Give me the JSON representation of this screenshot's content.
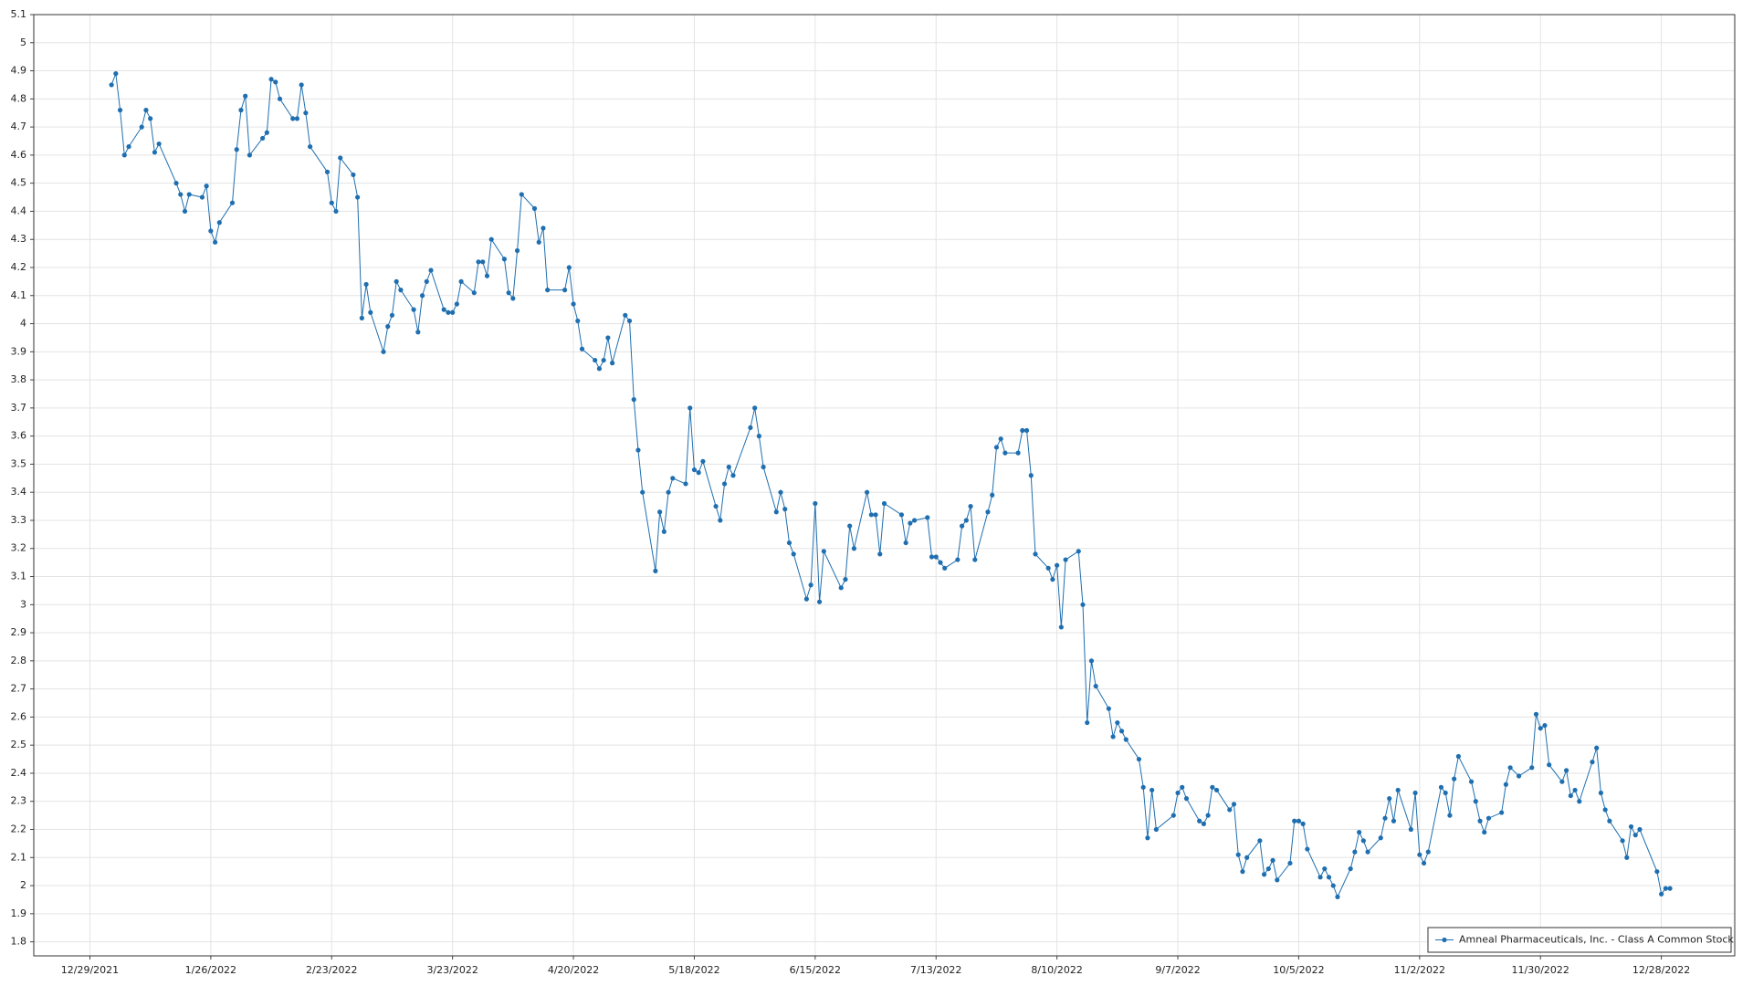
{
  "chart_data": {
    "type": "line",
    "x": [
      "1/3/2022",
      "1/4/2022",
      "1/5/2022",
      "1/6/2022",
      "1/7/2022",
      "1/10/2022",
      "1/11/2022",
      "1/12/2022",
      "1/13/2022",
      "1/14/2022",
      "1/18/2022",
      "1/19/2022",
      "1/20/2022",
      "1/21/2022",
      "1/24/2022",
      "1/25/2022",
      "1/26/2022",
      "1/27/2022",
      "1/28/2022",
      "1/31/2022",
      "2/1/2022",
      "2/2/2022",
      "2/3/2022",
      "2/4/2022",
      "2/7/2022",
      "2/8/2022",
      "2/9/2022",
      "2/10/2022",
      "2/11/2022",
      "2/14/2022",
      "2/15/2022",
      "2/16/2022",
      "2/17/2022",
      "2/18/2022",
      "2/22/2022",
      "2/23/2022",
      "2/24/2022",
      "2/25/2022",
      "2/28/2022",
      "3/1/2022",
      "3/2/2022",
      "3/3/2022",
      "3/4/2022",
      "3/7/2022",
      "3/8/2022",
      "3/9/2022",
      "3/10/2022",
      "3/11/2022",
      "3/14/2022",
      "3/15/2022",
      "3/16/2022",
      "3/17/2022",
      "3/18/2022",
      "3/21/2022",
      "3/22/2022",
      "3/23/2022",
      "3/24/2022",
      "3/25/2022",
      "3/28/2022",
      "3/29/2022",
      "3/30/2022",
      "3/31/2022",
      "4/1/2022",
      "4/4/2022",
      "4/5/2022",
      "4/6/2022",
      "4/7/2022",
      "4/8/2022",
      "4/11/2022",
      "4/12/2022",
      "4/13/2022",
      "4/14/2022",
      "4/18/2022",
      "4/19/2022",
      "4/20/2022",
      "4/21/2022",
      "4/22/2022",
      "4/25/2022",
      "4/26/2022",
      "4/27/2022",
      "4/28/2022",
      "4/29/2022",
      "5/2/2022",
      "5/3/2022",
      "5/4/2022",
      "5/5/2022",
      "5/6/2022",
      "5/9/2022",
      "5/10/2022",
      "5/11/2022",
      "5/12/2022",
      "5/13/2022",
      "5/16/2022",
      "5/17/2022",
      "5/18/2022",
      "5/19/2022",
      "5/20/2022",
      "5/23/2022",
      "5/24/2022",
      "5/25/2022",
      "5/26/2022",
      "5/27/2022",
      "5/31/2022",
      "6/1/2022",
      "6/2/2022",
      "6/3/2022",
      "6/6/2022",
      "6/7/2022",
      "6/8/2022",
      "6/9/2022",
      "6/10/2022",
      "6/13/2022",
      "6/14/2022",
      "6/15/2022",
      "6/16/2022",
      "6/17/2022",
      "6/21/2022",
      "6/22/2022",
      "6/23/2022",
      "6/24/2022",
      "6/27/2022",
      "6/28/2022",
      "6/29/2022",
      "6/30/2022",
      "7/1/2022",
      "7/5/2022",
      "7/6/2022",
      "7/7/2022",
      "7/8/2022",
      "7/11/2022",
      "7/12/2022",
      "7/13/2022",
      "7/14/2022",
      "7/15/2022",
      "7/18/2022",
      "7/19/2022",
      "7/20/2022",
      "7/21/2022",
      "7/22/2022",
      "7/25/2022",
      "7/26/2022",
      "7/27/2022",
      "7/28/2022",
      "7/29/2022",
      "8/1/2022",
      "8/2/2022",
      "8/3/2022",
      "8/4/2022",
      "8/5/2022",
      "8/8/2022",
      "8/9/2022",
      "8/10/2022",
      "8/11/2022",
      "8/12/2022",
      "8/15/2022",
      "8/16/2022",
      "8/17/2022",
      "8/18/2022",
      "8/19/2022",
      "8/22/2022",
      "8/23/2022",
      "8/24/2022",
      "8/25/2022",
      "8/26/2022",
      "8/29/2022",
      "8/30/2022",
      "8/31/2022",
      "9/1/2022",
      "9/2/2022",
      "9/6/2022",
      "9/7/2022",
      "9/8/2022",
      "9/9/2022",
      "9/12/2022",
      "9/13/2022",
      "9/14/2022",
      "9/15/2022",
      "9/16/2022",
      "9/19/2022",
      "9/20/2022",
      "9/21/2022",
      "9/22/2022",
      "9/23/2022",
      "9/26/2022",
      "9/27/2022",
      "9/28/2022",
      "9/29/2022",
      "9/30/2022",
      "10/3/2022",
      "10/4/2022",
      "10/5/2022",
      "10/6/2022",
      "10/7/2022",
      "10/10/2022",
      "10/11/2022",
      "10/12/2022",
      "10/13/2022",
      "10/14/2022",
      "10/17/2022",
      "10/18/2022",
      "10/19/2022",
      "10/20/2022",
      "10/21/2022",
      "10/24/2022",
      "10/25/2022",
      "10/26/2022",
      "10/27/2022",
      "10/28/2022",
      "10/31/2022",
      "11/1/2022",
      "11/2/2022",
      "11/3/2022",
      "11/4/2022",
      "11/7/2022",
      "11/8/2022",
      "11/9/2022",
      "11/10/2022",
      "11/11/2022",
      "11/14/2022",
      "11/15/2022",
      "11/16/2022",
      "11/17/2022",
      "11/18/2022",
      "11/21/2022",
      "11/22/2022",
      "11/23/2022",
      "11/25/2022",
      "11/28/2022",
      "11/29/2022",
      "11/30/2022",
      "12/1/2022",
      "12/2/2022",
      "12/5/2022",
      "12/6/2022",
      "12/7/2022",
      "12/8/2022",
      "12/9/2022",
      "12/12/2022",
      "12/13/2022",
      "12/14/2022",
      "12/15/2022",
      "12/16/2022",
      "12/19/2022",
      "12/20/2022",
      "12/21/2022",
      "12/22/2022",
      "12/23/2022",
      "12/27/2022",
      "12/28/2022",
      "12/29/2022",
      "12/30/2022"
    ],
    "series": [
      {
        "name": "Amneal Pharmaceuticals, Inc. - Class A Common Stock",
        "color": "#1f6fb0",
        "values": [
          4.85,
          4.89,
          4.76,
          4.6,
          4.63,
          4.7,
          4.76,
          4.73,
          4.61,
          4.64,
          4.5,
          4.46,
          4.4,
          4.46,
          4.45,
          4.49,
          4.33,
          4.29,
          4.36,
          4.43,
          4.62,
          4.76,
          4.81,
          4.6,
          4.66,
          4.68,
          4.87,
          4.86,
          4.8,
          4.73,
          4.73,
          4.85,
          4.75,
          4.63,
          4.54,
          4.43,
          4.4,
          4.59,
          4.53,
          4.45,
          4.02,
          4.14,
          4.04,
          3.9,
          3.99,
          4.03,
          4.15,
          4.12,
          4.05,
          3.97,
          4.1,
          4.15,
          4.19,
          4.05,
          4.04,
          4.04,
          4.07,
          4.15,
          4.11,
          4.22,
          4.22,
          4.17,
          4.3,
          4.23,
          4.11,
          4.09,
          4.26,
          4.46,
          4.41,
          4.29,
          4.34,
          4.12,
          4.12,
          4.2,
          4.07,
          4.01,
          3.91,
          3.87,
          3.84,
          3.87,
          3.95,
          3.86,
          4.03,
          4.01,
          3.73,
          3.55,
          3.4,
          3.12,
          3.33,
          3.26,
          3.4,
          3.45,
          3.43,
          3.7,
          3.48,
          3.47,
          3.51,
          3.35,
          3.3,
          3.43,
          3.49,
          3.46,
          3.63,
          3.7,
          3.6,
          3.49,
          3.33,
          3.4,
          3.34,
          3.22,
          3.18,
          3.02,
          3.07,
          3.36,
          3.01,
          3.19,
          3.06,
          3.09,
          3.28,
          3.2,
          3.4,
          3.32,
          3.32,
          3.18,
          3.36,
          3.32,
          3.22,
          3.29,
          3.3,
          3.31,
          3.17,
          3.17,
          3.15,
          3.13,
          3.16,
          3.28,
          3.3,
          3.35,
          3.16,
          3.33,
          3.39,
          3.56,
          3.59,
          3.54,
          3.54,
          3.62,
          3.62,
          3.46,
          3.18,
          3.13,
          3.09,
          3.14,
          2.92,
          3.16,
          3.19,
          3.0,
          2.58,
          2.8,
          2.71,
          2.63,
          2.53,
          2.58,
          2.55,
          2.52,
          2.45,
          2.35,
          2.17,
          2.34,
          2.2,
          2.25,
          2.33,
          2.35,
          2.31,
          2.23,
          2.22,
          2.25,
          2.35,
          2.34,
          2.27,
          2.29,
          2.11,
          2.05,
          2.1,
          2.16,
          2.04,
          2.06,
          2.09,
          2.02,
          2.08,
          2.23,
          2.23,
          2.22,
          2.13,
          2.03,
          2.06,
          2.03,
          2.0,
          1.96,
          2.06,
          2.12,
          2.19,
          2.16,
          2.12,
          2.17,
          2.24,
          2.31,
          2.23,
          2.34,
          2.2,
          2.33,
          2.11,
          2.08,
          2.12,
          2.35,
          2.33,
          2.25,
          2.38,
          2.46,
          2.37,
          2.3,
          2.23,
          2.19,
          2.24,
          2.26,
          2.36,
          2.42,
          2.39,
          2.42,
          2.61,
          2.56,
          2.57,
          2.43,
          2.37,
          2.41,
          2.32,
          2.34,
          2.3,
          2.44,
          2.49,
          2.33,
          2.27,
          2.23,
          2.16,
          2.1,
          2.21,
          2.18,
          2.2,
          2.05,
          1.97,
          1.99,
          1.99
        ]
      }
    ],
    "xlim": [
      "12/16/2021",
      "1/14/2023"
    ],
    "xticks": [
      "12/29/2021",
      "1/26/2022",
      "2/23/2022",
      "3/23/2022",
      "4/20/2022",
      "5/18/2022",
      "6/15/2022",
      "7/13/2022",
      "8/10/2022",
      "9/7/2022",
      "10/5/2022",
      "11/2/2022",
      "11/30/2022",
      "12/28/2022"
    ],
    "ylim": [
      1.75,
      5.1
    ],
    "yticks": [
      1.8,
      1.9,
      2,
      2.1,
      2.2,
      2.3,
      2.4,
      2.5,
      2.6,
      2.7,
      2.8,
      2.9,
      3,
      3.1,
      3.2,
      3.3,
      3.4,
      3.5,
      3.6,
      3.7,
      3.8,
      3.9,
      4,
      4.1,
      4.2,
      4.3,
      4.4,
      4.5,
      4.6,
      4.7,
      4.8,
      4.9,
      5,
      5.1
    ],
    "grid": true,
    "legend": "bottom-right"
  }
}
